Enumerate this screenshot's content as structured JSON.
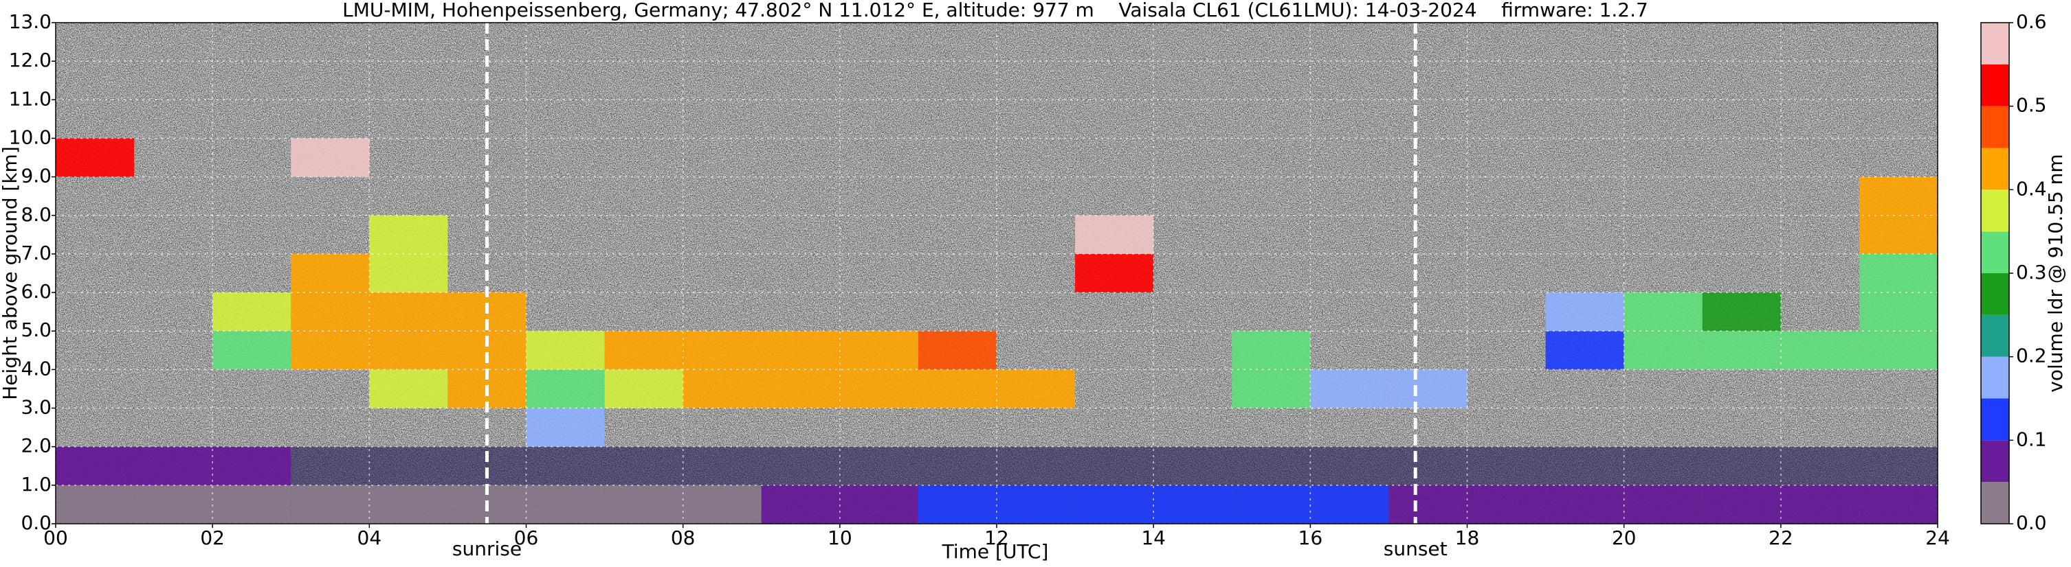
{
  "chart_data": {
    "type": "heatmap",
    "title": "LMU-MIM, Hohenpeissenberg, Germany; 47.802° N 11.012° E, altitude: 977 m    Vaisala CL61 (CL61LMU): 14-03-2024    firmware: 1.2.7",
    "xlabel": "Time [UTC]",
    "ylabel": "Height above ground [km]",
    "colorbar_label": "volume ldr @ 910.55 nm",
    "xlim": [
      0,
      24
    ],
    "xticks": [
      {
        "value": 0,
        "label": "00"
      },
      {
        "value": 2,
        "label": "02"
      },
      {
        "value": 4,
        "label": "04"
      },
      {
        "value": 6,
        "label": "06"
      },
      {
        "value": 8,
        "label": "08"
      },
      10,
      12,
      14,
      16,
      18,
      20,
      22,
      24
    ],
    "ylim": [
      0,
      13
    ],
    "yticks": [
      {
        "value": 0,
        "label": "0.0"
      },
      {
        "value": 1,
        "label": "1.0"
      },
      {
        "value": 2,
        "label": "2.0"
      },
      {
        "value": 3,
        "label": "3.0"
      },
      {
        "value": 4,
        "label": "4.0"
      },
      {
        "value": 5,
        "label": "5.0"
      },
      {
        "value": 6,
        "label": "6.0"
      },
      {
        "value": 7,
        "label": "7.0"
      },
      {
        "value": 8,
        "label": "8.0"
      },
      {
        "value": 9,
        "label": "9.0"
      },
      {
        "value": 10,
        "label": "10.0"
      },
      {
        "value": 11,
        "label": "11.0"
      },
      {
        "value": 12,
        "label": "12.0"
      },
      {
        "value": 13,
        "label": "13.0"
      }
    ],
    "zlim": [
      0,
      0.6
    ],
    "zticks": [
      {
        "value": 0,
        "label": "0.0"
      },
      0.1,
      0.2,
      0.3,
      0.4,
      0.5,
      0.6
    ],
    "colorscale": [
      "#8c7c8c",
      "#6a1b9a",
      "#1e3cff",
      "#8fb0ff",
      "#1fa08c",
      "#1c9e1c",
      "#5fe07a",
      "#d4f03c",
      "#ffa400",
      "#ff5000",
      "#ff0000",
      "#f0c4c4"
    ],
    "grid": true,
    "annotations": [
      {
        "text": "sunrise",
        "x": 5.5
      },
      {
        "text": "sunset",
        "x": 17.34
      }
    ],
    "x": [
      0.5,
      1.5,
      2.5,
      3.5,
      4.5,
      5.5,
      6.5,
      7.5,
      8.5,
      9.5,
      10.5,
      11.5,
      12.5,
      13.5,
      14.5,
      15.5,
      16.5,
      17.5,
      18.5,
      19.5,
      20.5,
      21.5,
      22.5,
      23.5
    ],
    "y": [
      0.5,
      1.5,
      2.5,
      3.5,
      4.5,
      5.5,
      6.5,
      7.5,
      8.5,
      9.5,
      10.5,
      11.5,
      12.5
    ],
    "z": [
      [
        0.02,
        0.02,
        0.02,
        0.02,
        0.03,
        0.03,
        0.03,
        0.04,
        0.04,
        0.05,
        0.08,
        0.1,
        0.1,
        0.1,
        0.1,
        0.1,
        0.11,
        0.06,
        0.06,
        0.06,
        0.06,
        0.06,
        0.06,
        0.06
      ],
      [
        0.08,
        0.08,
        0.08,
        null,
        null,
        null,
        null,
        null,
        null,
        null,
        null,
        null,
        null,
        null,
        null,
        null,
        null,
        null,
        null,
        null,
        null,
        null,
        null,
        null
      ],
      [
        null,
        null,
        null,
        null,
        null,
        null,
        0.15,
        null,
        null,
        null,
        null,
        null,
        null,
        null,
        null,
        null,
        null,
        null,
        null,
        null,
        null,
        null,
        null,
        null
      ],
      [
        null,
        null,
        null,
        null,
        0.38,
        0.4,
        0.3,
        0.35,
        0.42,
        0.42,
        0.42,
        0.44,
        0.4,
        null,
        null,
        0.3,
        0.15,
        0.18,
        null,
        null,
        null,
        null,
        null,
        null
      ],
      [
        null,
        null,
        0.33,
        0.4,
        0.42,
        0.42,
        0.38,
        0.4,
        0.42,
        0.42,
        0.42,
        0.45,
        null,
        null,
        null,
        0.3,
        null,
        null,
        null,
        0.12,
        0.3,
        0.3,
        0.3,
        0.32
      ],
      [
        null,
        null,
        0.35,
        0.42,
        0.42,
        0.4,
        null,
        null,
        null,
        null,
        null,
        null,
        null,
        null,
        null,
        null,
        null,
        null,
        null,
        0.15,
        0.3,
        0.28,
        null,
        0.3
      ],
      [
        null,
        null,
        null,
        0.4,
        0.38,
        null,
        null,
        null,
        null,
        null,
        null,
        null,
        null,
        0.5,
        null,
        null,
        null,
        null,
        null,
        null,
        null,
        null,
        null,
        0.32
      ],
      [
        null,
        null,
        null,
        null,
        0.35,
        null,
        null,
        null,
        null,
        null,
        null,
        null,
        null,
        0.55,
        null,
        null,
        null,
        null,
        null,
        null,
        null,
        null,
        null,
        0.4
      ],
      [
        null,
        null,
        null,
        null,
        null,
        null,
        null,
        null,
        null,
        null,
        null,
        null,
        null,
        null,
        null,
        null,
        null,
        null,
        null,
        null,
        null,
        null,
        null,
        0.4
      ],
      [
        0.5,
        null,
        null,
        0.55,
        null,
        null,
        null,
        null,
        null,
        null,
        null,
        null,
        null,
        null,
        null,
        null,
        null,
        null,
        null,
        null,
        null,
        null,
        null,
        null
      ],
      [
        null,
        null,
        null,
        null,
        null,
        null,
        null,
        null,
        null,
        null,
        null,
        null,
        null,
        null,
        null,
        null,
        null,
        null,
        null,
        null,
        null,
        null,
        null,
        null
      ],
      [
        null,
        null,
        null,
        null,
        null,
        null,
        null,
        null,
        null,
        null,
        null,
        null,
        null,
        null,
        null,
        null,
        null,
        null,
        null,
        null,
        null,
        null,
        null,
        null
      ],
      [
        null,
        null,
        null,
        null,
        null,
        null,
        null,
        null,
        null,
        null,
        null,
        null,
        null,
        null,
        null,
        null,
        null,
        null,
        null,
        null,
        null,
        null,
        null,
        null
      ]
    ]
  }
}
